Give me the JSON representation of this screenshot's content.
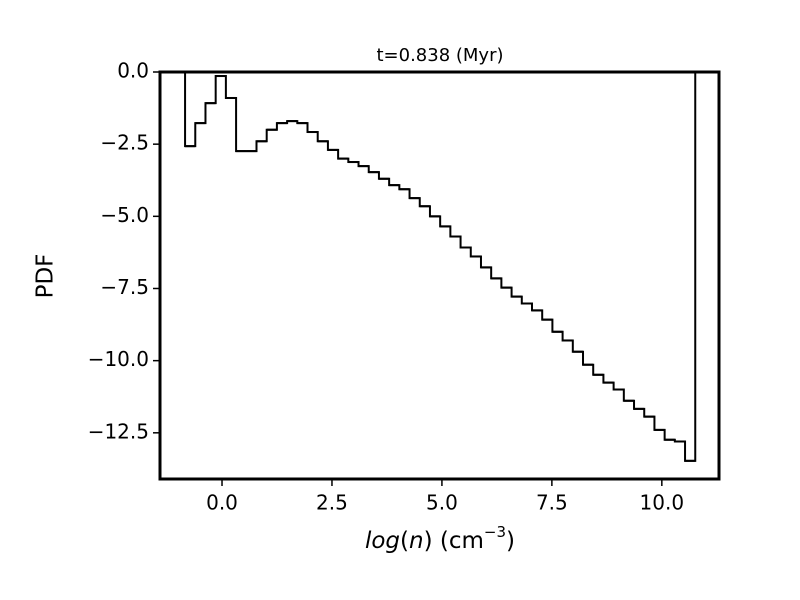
{
  "chart_data": {
    "type": "histogram",
    "title": "t=0.838 (Myr)",
    "xlabel": [
      "log",
      "(",
      "n",
      ")",
      " (cm",
      "−3",
      ")"
    ],
    "ylabel": "PDF",
    "bins": [
      -0.84,
      -0.608,
      -0.376,
      -0.144,
      0.088,
      0.32,
      0.552,
      0.784,
      1.016,
      1.248,
      1.48,
      1.712,
      1.944,
      2.176,
      2.408,
      2.64,
      2.872,
      3.104,
      3.336,
      3.568,
      3.8,
      4.032,
      4.264,
      4.496,
      4.728,
      4.96,
      5.192,
      5.424,
      5.656,
      5.888,
      6.12,
      6.352,
      6.584,
      6.816,
      7.048,
      7.28,
      7.512,
      7.744,
      7.976,
      8.208,
      8.44,
      8.672,
      8.904,
      9.136,
      9.368,
      9.6,
      9.832,
      10.064,
      10.296,
      10.528,
      10.76
    ],
    "values": [
      -2.57,
      -1.77,
      -1.08,
      -0.14,
      -0.9,
      -2.74,
      -2.74,
      -2.4,
      -2.0,
      -1.77,
      -1.7,
      -1.77,
      -2.08,
      -2.4,
      -2.7,
      -3.0,
      -3.12,
      -3.26,
      -3.47,
      -3.7,
      -3.92,
      -4.06,
      -4.37,
      -4.65,
      -5.0,
      -5.35,
      -5.7,
      -6.08,
      -6.39,
      -6.77,
      -7.15,
      -7.47,
      -7.78,
      -8.02,
      -8.26,
      -8.58,
      -9.0,
      -9.3,
      -9.69,
      -10.14,
      -10.49,
      -10.76,
      -11.0,
      -11.39,
      -11.67,
      -11.94,
      -12.4,
      -12.74,
      -12.8,
      -13.47
    ],
    "color": "#000000",
    "xlim": [
      -1.41,
      11.3
    ],
    "ylim": [
      -14.1,
      0.0
    ],
    "xticks": [
      {
        "value": 0,
        "label": "0.0"
      },
      2.5,
      {
        "value": 5,
        "label": "5.0"
      },
      7.5,
      {
        "value": 10,
        "label": "10.0"
      }
    ],
    "yticks": [
      {
        "value": 0,
        "label": "0.0"
      },
      {
        "value": -2.5,
        "label": "−2.5"
      },
      {
        "value": -5,
        "label": "−5.0"
      },
      {
        "value": -7.5,
        "label": "−7.5"
      },
      {
        "value": -10,
        "label": "−10.0"
      },
      {
        "value": -12.5,
        "label": "−12.5"
      }
    ],
    "grid": false
  }
}
